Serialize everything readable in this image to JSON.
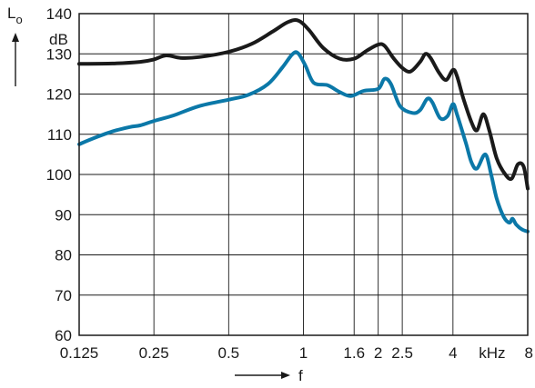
{
  "chart_data": {
    "type": "line",
    "ylabel": "Lo",
    "yunit": "dB",
    "xlabel": "f",
    "xunit": "kHz",
    "x_scale": "log",
    "ylim": [
      60,
      140
    ],
    "y_ticks": [
      60,
      70,
      80,
      90,
      100,
      110,
      120,
      130,
      140
    ],
    "x_ticks": [
      0.125,
      0.25,
      0.5,
      1,
      1.6,
      2,
      2.5,
      4,
      8
    ],
    "x_tick_labels": [
      "0.125",
      "0.25",
      "0.5",
      "1",
      "1.6",
      "2",
      "2.5",
      "4",
      "8"
    ],
    "x_gridlines": [
      0.125,
      0.25,
      0.5,
      1,
      1.6,
      2,
      2.5,
      4,
      8
    ],
    "grid": true,
    "series": [
      {
        "color": "#1a1a1a",
        "points": [
          [
            0.125,
            127.5
          ],
          [
            0.17,
            127.6
          ],
          [
            0.22,
            128.0
          ],
          [
            0.25,
            128.6
          ],
          [
            0.28,
            129.6
          ],
          [
            0.32,
            129.0
          ],
          [
            0.38,
            129.2
          ],
          [
            0.5,
            130.5
          ],
          [
            0.62,
            132.5
          ],
          [
            0.75,
            135.5
          ],
          [
            0.86,
            137.8
          ],
          [
            0.95,
            138.3
          ],
          [
            1.05,
            136.0
          ],
          [
            1.2,
            131.5
          ],
          [
            1.4,
            128.8
          ],
          [
            1.6,
            128.8
          ],
          [
            1.8,
            130.8
          ],
          [
            2.0,
            132.3
          ],
          [
            2.12,
            132.0
          ],
          [
            2.3,
            129.0
          ],
          [
            2.5,
            126.5
          ],
          [
            2.7,
            125.6
          ],
          [
            2.95,
            128.0
          ],
          [
            3.1,
            130.0
          ],
          [
            3.25,
            129.0
          ],
          [
            3.5,
            125.5
          ],
          [
            3.75,
            123.5
          ],
          [
            4.0,
            126.0
          ],
          [
            4.15,
            124.5
          ],
          [
            4.4,
            119.0
          ],
          [
            4.75,
            113.0
          ],
          [
            5.0,
            111.0
          ],
          [
            5.3,
            115.0
          ],
          [
            5.6,
            111.0
          ],
          [
            6.0,
            104.0
          ],
          [
            6.5,
            100.0
          ],
          [
            6.9,
            99.0
          ],
          [
            7.3,
            102.5
          ],
          [
            7.7,
            102.0
          ],
          [
            8.0,
            96.5
          ]
        ]
      },
      {
        "color": "#0b78a8",
        "points": [
          [
            0.125,
            107.5
          ],
          [
            0.14,
            108.8
          ],
          [
            0.17,
            110.7
          ],
          [
            0.2,
            111.8
          ],
          [
            0.22,
            112.2
          ],
          [
            0.25,
            113.3
          ],
          [
            0.3,
            114.7
          ],
          [
            0.38,
            117.0
          ],
          [
            0.5,
            118.6
          ],
          [
            0.6,
            119.8
          ],
          [
            0.72,
            122.5
          ],
          [
            0.82,
            126.5
          ],
          [
            0.9,
            129.8
          ],
          [
            0.95,
            130.2
          ],
          [
            1.02,
            127.0
          ],
          [
            1.1,
            122.8
          ],
          [
            1.25,
            122.2
          ],
          [
            1.4,
            120.5
          ],
          [
            1.55,
            119.5
          ],
          [
            1.75,
            120.8
          ],
          [
            2.0,
            121.3
          ],
          [
            2.12,
            123.8
          ],
          [
            2.25,
            122.5
          ],
          [
            2.45,
            117.0
          ],
          [
            2.75,
            115.3
          ],
          [
            2.95,
            116.0
          ],
          [
            3.15,
            118.8
          ],
          [
            3.3,
            118.0
          ],
          [
            3.55,
            114.0
          ],
          [
            3.8,
            114.5
          ],
          [
            4.0,
            117.5
          ],
          [
            4.15,
            115.0
          ],
          [
            4.5,
            108.0
          ],
          [
            4.75,
            103.0
          ],
          [
            5.0,
            101.5
          ],
          [
            5.4,
            105.0
          ],
          [
            5.7,
            100.0
          ],
          [
            6.0,
            94.0
          ],
          [
            6.4,
            89.5
          ],
          [
            6.75,
            88.0
          ],
          [
            6.95,
            89.0
          ],
          [
            7.2,
            87.5
          ],
          [
            7.6,
            86.3
          ],
          [
            8.0,
            85.8
          ]
        ]
      }
    ]
  }
}
